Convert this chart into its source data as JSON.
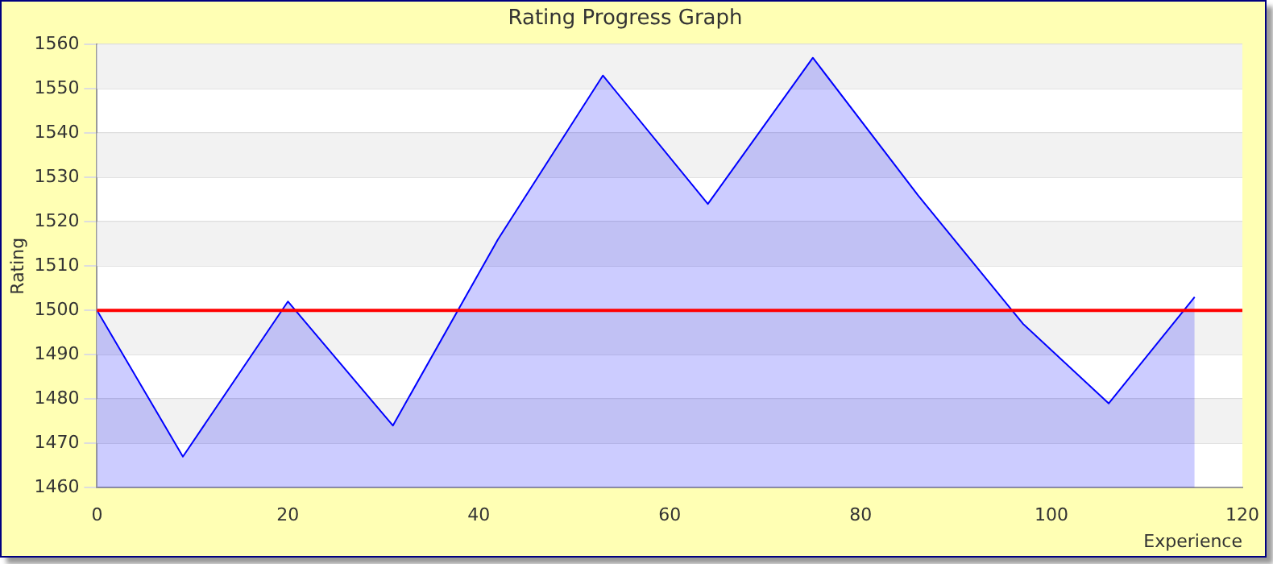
{
  "chart_data": {
    "type": "area",
    "title": "Rating Progress Graph",
    "xlabel": "Experience",
    "ylabel": "Rating",
    "x": [
      0,
      9,
      20,
      31,
      42,
      53,
      64,
      75,
      86,
      97,
      106,
      115
    ],
    "values": [
      1500,
      1467,
      1502,
      1474,
      1516,
      1553,
      1524,
      1557,
      1526,
      1497,
      1479,
      1503
    ],
    "color": "#0000ff",
    "xlim": [
      0,
      120
    ],
    "xticks": [
      0,
      20,
      40,
      60,
      80,
      100,
      120
    ],
    "ylim": [
      1460,
      1560
    ],
    "yticks": [
      1460,
      1470,
      1480,
      1490,
      1500,
      1510,
      1520,
      1530,
      1540,
      1550,
      1560
    ],
    "ref_lines": [
      {
        "axis": "y",
        "value": 1500,
        "color": "#ff0000"
      }
    ],
    "grid": "y",
    "legend": false,
    "marker": "none"
  }
}
